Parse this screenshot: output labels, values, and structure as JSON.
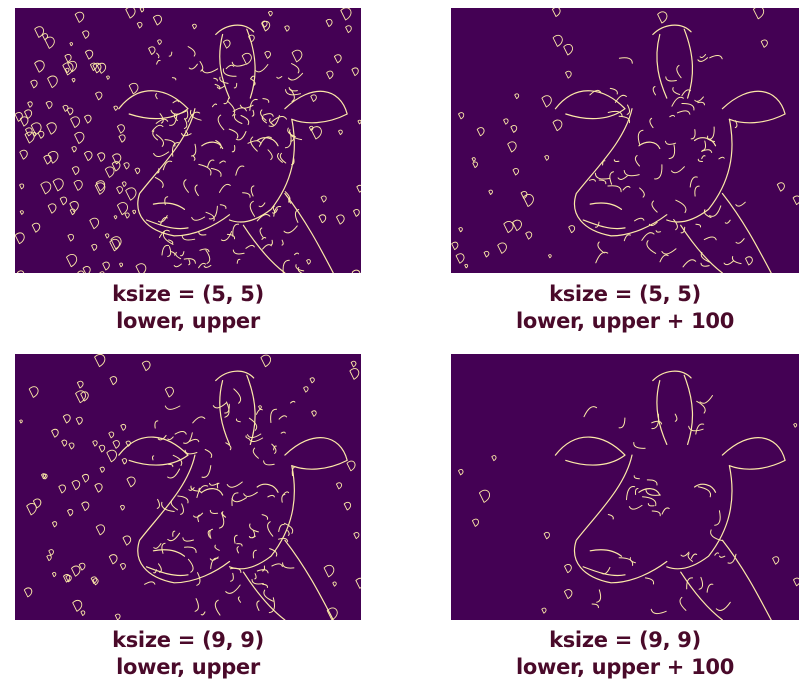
{
  "colors": {
    "background": "#440154",
    "edges": "#fde9a8",
    "caption_text": "#4a0a2a"
  },
  "panels": [
    {
      "id": "tl",
      "image_subject": "giraffe-edge-map",
      "caption_line1": "ksize = (5, 5)",
      "caption_line2": "lower, upper",
      "edge_density": 1.0
    },
    {
      "id": "tr",
      "image_subject": "giraffe-edge-map",
      "caption_line1": "ksize = (5, 5)",
      "caption_line2": "lower, upper + 100",
      "edge_density": 0.55
    },
    {
      "id": "bl",
      "image_subject": "giraffe-edge-map",
      "caption_line1": "ksize = (9, 9)",
      "caption_line2": "lower, upper",
      "edge_density": 0.75
    },
    {
      "id": "br",
      "image_subject": "giraffe-edge-map",
      "caption_line1": "ksize = (9, 9)",
      "caption_line2": "lower, upper + 100",
      "edge_density": 0.3
    }
  ]
}
